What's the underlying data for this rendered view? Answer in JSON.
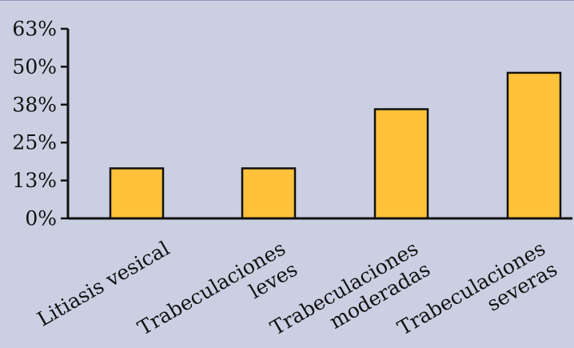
{
  "chart_data": {
    "type": "bar",
    "categories": [
      [
        "Litiasis vesical"
      ],
      [
        "Trabeculaciones",
        "leves"
      ],
      [
        "Trabeculaciones",
        "moderadas"
      ],
      [
        "Trabeculaciones",
        "severas"
      ]
    ],
    "values": [
      16.5,
      16.5,
      36,
      48
    ],
    "yticks": [
      "0%",
      "13%",
      "25%",
      "38%",
      "50%",
      "63%"
    ],
    "ytick_values": [
      0,
      12.5,
      25,
      37.5,
      50,
      62.5
    ],
    "ylim": [
      0,
      62.5
    ],
    "grid": false,
    "legend": "none",
    "title": "",
    "xlabel": "",
    "ylabel": "",
    "colors": {
      "bar": "#ffc23a",
      "background": "#cacfe2",
      "axis": "#111111"
    }
  }
}
